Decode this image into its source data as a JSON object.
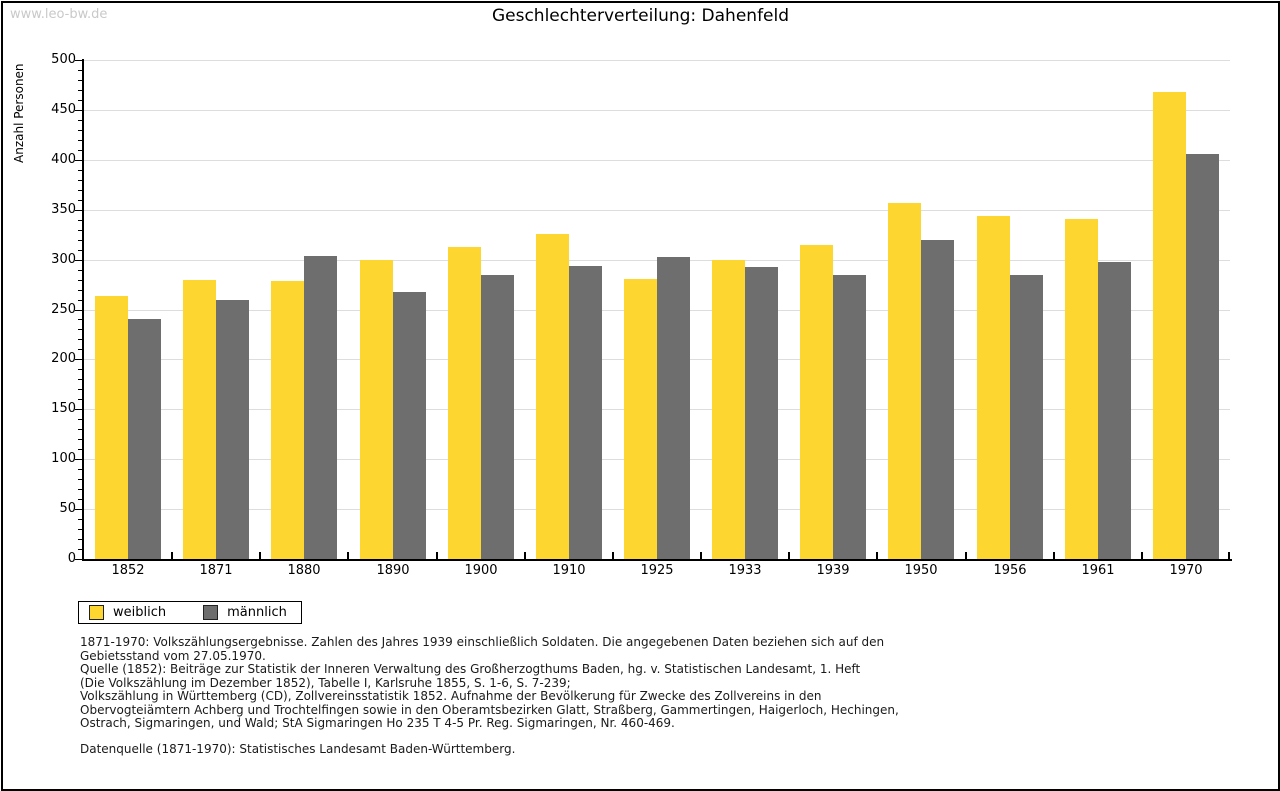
{
  "watermark": "www.leo-bw.de",
  "header": {
    "title": "Geschlechterverteilung: Dahenfeld"
  },
  "chart_data": {
    "type": "bar",
    "title": "Geschlechterverteilung: Dahenfeld",
    "xlabel": "",
    "ylabel": "Anzahl Personen",
    "ylim": [
      0,
      500
    ],
    "ytick_step": 50,
    "minor_tick_step": 10,
    "grid": true,
    "legend_position": "bottom-left",
    "categories": [
      "1852",
      "1871",
      "1880",
      "1890",
      "1900",
      "1910",
      "1925",
      "1933",
      "1939",
      "1950",
      "1956",
      "1961",
      "1970"
    ],
    "series": [
      {
        "name": "weiblich",
        "color": "#fdd730",
        "values": [
          264,
          280,
          279,
          300,
          313,
          326,
          281,
          300,
          315,
          357,
          344,
          341,
          468
        ]
      },
      {
        "name": "männlich",
        "color": "#6e6e6e",
        "values": [
          240,
          260,
          304,
          268,
          285,
          294,
          303,
          293,
          285,
          320,
          285,
          298,
          406
        ]
      }
    ]
  },
  "footnotes": {
    "lines": [
      "1871-1970: Volkszählungsergebnisse. Zahlen des Jahres 1939 einschließlich Soldaten. Die angegebenen Daten beziehen sich auf den",
      "Gebietsstand vom 27.05.1970.",
      "Quelle (1852): Beiträge zur Statistik der Inneren Verwaltung des Großherzogthums Baden, hg. v. Statistischen Landesamt, 1. Heft",
      "(Die Volkszählung im Dezember 1852), Tabelle I, Karlsruhe 1855, S. 1-6, S. 7-239;",
      "Volkszählung in Württemberg (CD), Zollvereinsstatistik 1852. Aufnahme der Bevölkerung für Zwecke des Zollvereins in den",
      "Obervogteiämtern Achberg und Trochtelfingen sowie in den Oberamtsbezirken Glatt, Straßberg, Gammertingen, Haigerloch, Hechingen,",
      "Ostrach, Sigmaringen, und Wald; StA Sigmaringen Ho 235 T 4-5 Pr. Reg. Sigmaringen, Nr. 460-469."
    ],
    "data_source": "Datenquelle (1871-1970): Statistisches Landesamt Baden-Württemberg."
  },
  "colors": {
    "female_bar": "#fdd730",
    "male_bar": "#6e6e6e",
    "gridline": "#dddddd",
    "axis": "#000000",
    "watermark": "#c9c9c9",
    "text": "#1a1a1a"
  }
}
